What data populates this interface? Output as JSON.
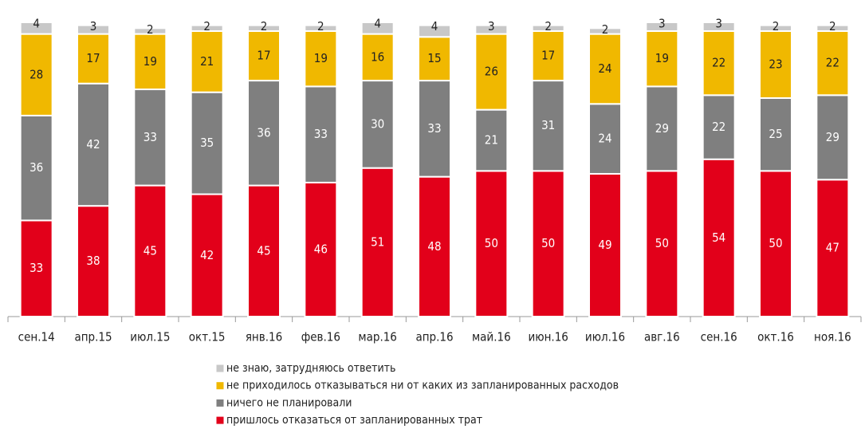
{
  "chart_data": {
    "type": "stacked_bar",
    "categories": [
      "сен.14",
      "апр.15",
      "июл.15",
      "окт.15",
      "янв.16",
      "фев.16",
      "мар.16",
      "апр.16",
      "май.16",
      "июн.16",
      "июл.16",
      "авг.16",
      "сен.16",
      "окт.16",
      "ноя.16"
    ],
    "series": [
      {
        "name": "пришлось отказаться от запланированных трат",
        "color": "#e2001a",
        "label_color": "#ffffff",
        "values": [
          33,
          38,
          45,
          42,
          45,
          46,
          51,
          48,
          50,
          50,
          49,
          50,
          54,
          50,
          47
        ]
      },
      {
        "name": "ничего не планировали",
        "color": "#7f7f7f",
        "label_color": "#ffffff",
        "values": [
          36,
          42,
          33,
          35,
          36,
          33,
          30,
          33,
          21,
          31,
          24,
          29,
          22,
          25,
          29
        ]
      },
      {
        "name": "не приходилось отказываться ни от каких из запланированных расходов",
        "color": "#f0b800",
        "label_color": "#222222",
        "values": [
          28,
          17,
          19,
          21,
          17,
          19,
          16,
          15,
          26,
          17,
          24,
          19,
          22,
          23,
          22
        ]
      },
      {
        "name": "не знаю, затрудняюсь ответить",
        "color": "#c8c8c8",
        "label_color": "#222222",
        "values": [
          4,
          3,
          2,
          2,
          2,
          2,
          4,
          4,
          3,
          2,
          2,
          3,
          3,
          2,
          2
        ]
      }
    ]
  }
}
